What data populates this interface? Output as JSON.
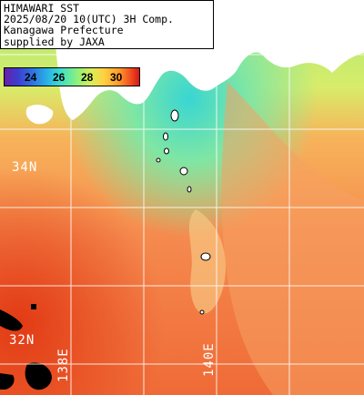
{
  "info": {
    "line1": "HIMAWARI SST",
    "line2": "2025/08/20 10(UTC) 3H Comp.",
    "line3": "Kanagawa Prefecture",
    "line4": "supplied by JAXA"
  },
  "colorbar": {
    "ticks": [
      "24",
      "26",
      "28",
      "30"
    ]
  },
  "grid_labels": {
    "lat_34": "34N",
    "lat_32": "32N",
    "lon_138": "138E",
    "lon_140": "140E"
  },
  "colors": {
    "warm": "#f4925c",
    "hot": "#e64b1c",
    "cool": "#9be070",
    "cold": "#3fd7d0",
    "land": "#ffffff",
    "nodata": "#000000"
  }
}
